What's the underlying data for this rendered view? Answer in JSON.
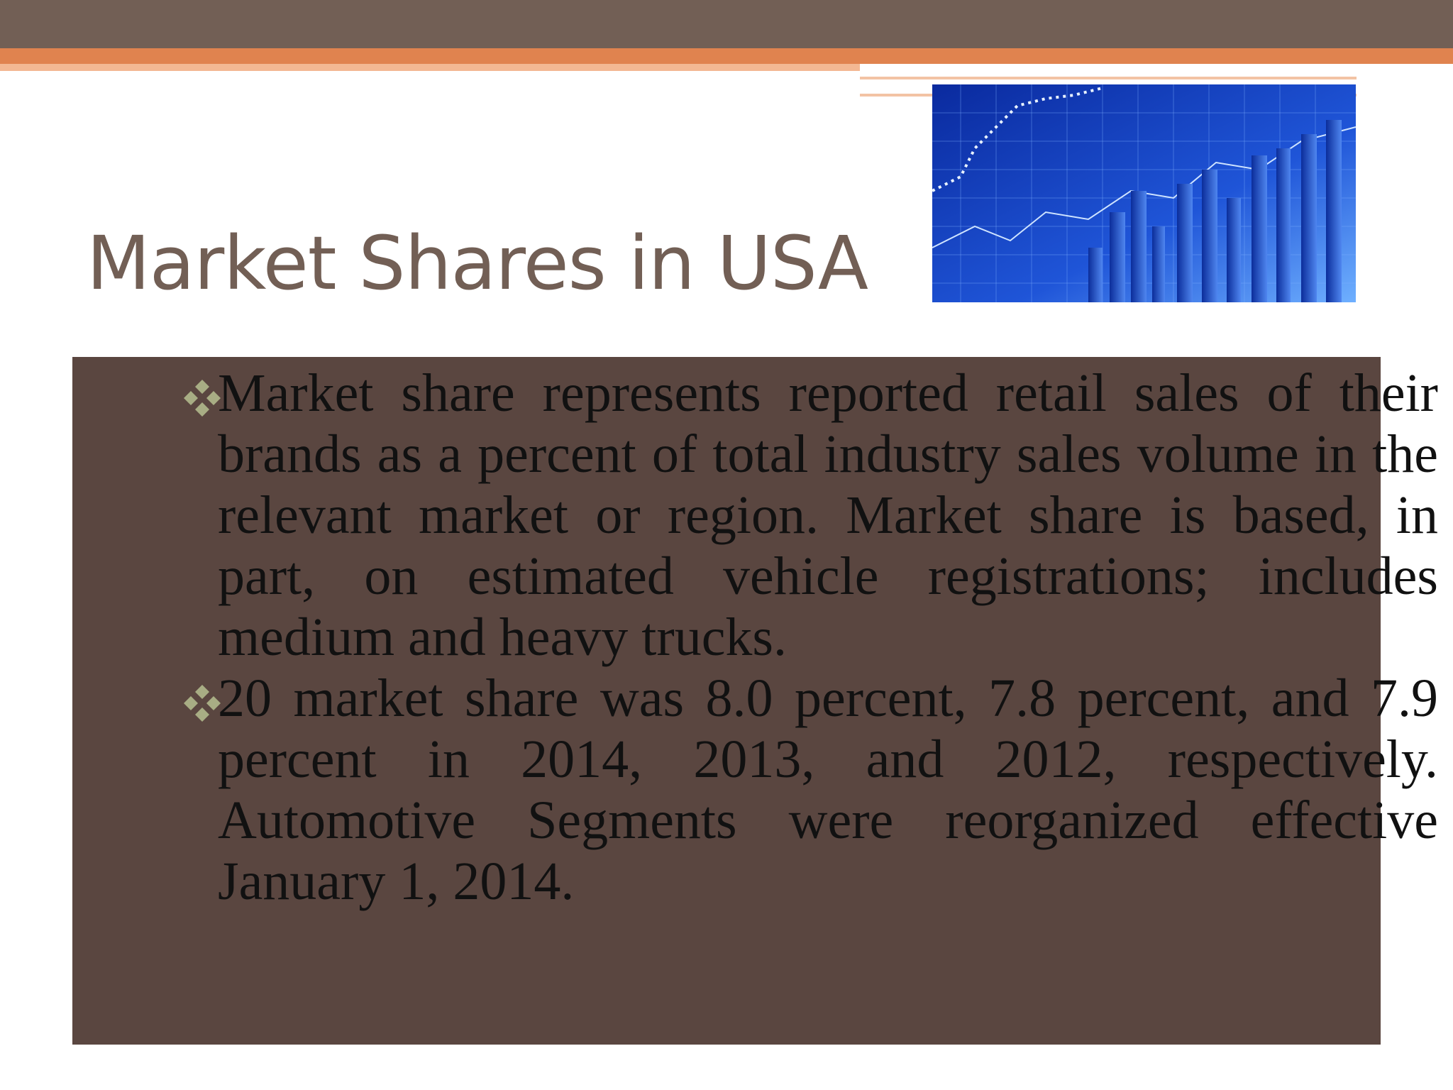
{
  "slide": {
    "title": "Market Shares in USA",
    "bullets": [
      "Market share represents reported retail sales of their brands as a percent of total industry sales volume in the relevant market or region. Market share is based, in part, on estimated vehicle registrations; includes medium and heavy trucks.",
      "20 market share was 8.0 percent, 7.8 percent, and 7.9 percent in 2014, 2013, and 2012, respectively. Automotive Segments were reorganized effective January 1, 2014."
    ]
  }
}
